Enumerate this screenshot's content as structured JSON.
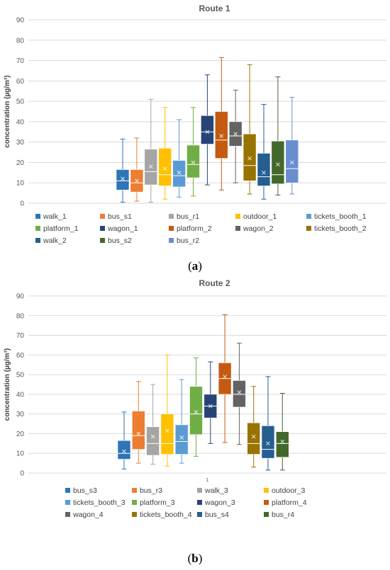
{
  "chart_data": [
    {
      "type": "box",
      "title": "Route 1",
      "ylabel": "concentration (µg/m³)",
      "ylim": [
        0,
        90
      ],
      "yticks": [
        "0",
        "10",
        "20",
        "30",
        "40",
        "50",
        "60",
        "70",
        "80",
        "90"
      ],
      "x_category": "",
      "grid": true,
      "legend_position": "bottom",
      "caption": "(a)",
      "series": [
        {
          "name": "walk_1",
          "color": "#2e75b6",
          "min": 0.5,
          "q1": 6.5,
          "median": 11,
          "mean": 12,
          "q3": 16.5,
          "max": 31.5
        },
        {
          "name": "bus_s1",
          "color": "#ed7d31",
          "min": 1,
          "q1": 5.5,
          "median": 10,
          "mean": 11,
          "q3": 16.5,
          "max": 32
        },
        {
          "name": "bus_r1",
          "color": "#a5a5a5",
          "min": 0.5,
          "q1": 9,
          "median": 15.5,
          "mean": 18,
          "q3": 26.5,
          "max": 51
        },
        {
          "name": "outdoor_1",
          "color": "#ffc000",
          "min": 2,
          "q1": 8.5,
          "median": 14,
          "mean": 17,
          "q3": 27,
          "max": 47
        },
        {
          "name": "tickets_booth_1",
          "color": "#5b9bd5",
          "min": 3,
          "q1": 8,
          "median": 13.5,
          "mean": 15,
          "q3": 21,
          "max": 41
        },
        {
          "name": "platform_1",
          "color": "#70ad47",
          "min": 3.5,
          "q1": 12.5,
          "median": 19,
          "mean": 20,
          "q3": 28.5,
          "max": 47
        },
        {
          "name": "wagon_1",
          "color": "#264478",
          "min": 9,
          "q1": 29,
          "median": 35,
          "mean": 35,
          "q3": 43,
          "max": 63
        },
        {
          "name": "platform_2",
          "color": "#c55a11",
          "min": 6.5,
          "q1": 22,
          "median": 31,
          "mean": 33,
          "q3": 45,
          "max": 71.5
        },
        {
          "name": "wagon_2",
          "color": "#636363",
          "min": 10,
          "q1": 28,
          "median": 33,
          "mean": 34,
          "q3": 40,
          "max": 55.5
        },
        {
          "name": "tickets_booth_2",
          "color": "#997300",
          "min": 4.5,
          "q1": 11,
          "median": 18.5,
          "mean": 22,
          "q3": 34,
          "max": 68
        },
        {
          "name": "walk_2",
          "color": "#255e91",
          "min": 2,
          "q1": 8.5,
          "median": 13,
          "mean": 15,
          "q3": 24.5,
          "max": 48.5
        },
        {
          "name": "bus_s2",
          "color": "#43682b",
          "min": 4,
          "q1": 9.5,
          "median": 14,
          "mean": 19,
          "q3": 30.5,
          "max": 62
        },
        {
          "name": "bus_r2",
          "color": "#698ed0",
          "min": 4.5,
          "q1": 10,
          "median": 17,
          "mean": 20,
          "q3": 31,
          "max": 52
        }
      ]
    },
    {
      "type": "box",
      "title": "Route 2",
      "ylabel": "concentration (µg/m³)",
      "ylim": [
        0,
        90
      ],
      "yticks": [
        "0",
        "10",
        "20",
        "30",
        "40",
        "50",
        "60",
        "70",
        "80",
        "90"
      ],
      "x_category": "1",
      "grid": true,
      "legend_position": "bottom",
      "caption": "(b)",
      "series": [
        {
          "name": "bus_s3",
          "color": "#2e75b6",
          "min": 2,
          "q1": 7,
          "median": 10,
          "mean": 11,
          "q3": 16.5,
          "max": 31
        },
        {
          "name": "bus_r3",
          "color": "#ed7d31",
          "min": 5,
          "q1": 12,
          "median": 19,
          "mean": 20,
          "q3": 31.5,
          "max": 46.5
        },
        {
          "name": "walk_3",
          "color": "#a5a5a5",
          "min": 4.5,
          "q1": 9,
          "median": 15,
          "mean": 18.5,
          "q3": 23.5,
          "max": 45
        },
        {
          "name": "outdoor_3",
          "color": "#ffc000",
          "min": 3.5,
          "q1": 9.5,
          "median": 15,
          "mean": 21.5,
          "q3": 30,
          "max": 60
        },
        {
          "name": "tickets_booth_3",
          "color": "#5b9bd5",
          "min": 5,
          "q1": 9.5,
          "median": 16,
          "mean": 18,
          "q3": 24.5,
          "max": 47.5
        },
        {
          "name": "platform_3",
          "color": "#70ad47",
          "min": 8.5,
          "q1": 19.5,
          "median": 30,
          "mean": 31,
          "q3": 44,
          "max": 58.5
        },
        {
          "name": "wagon_3",
          "color": "#264478",
          "min": 15,
          "q1": 28,
          "median": 34,
          "mean": 34,
          "q3": 40,
          "max": 56.5
        },
        {
          "name": "platform_4",
          "color": "#c55a11",
          "min": 15.5,
          "q1": 40,
          "median": 48,
          "mean": 49,
          "q3": 56,
          "max": 80.5
        },
        {
          "name": "wagon_4",
          "color": "#636363",
          "min": 14.5,
          "q1": 33.5,
          "median": 40,
          "mean": 41,
          "q3": 47,
          "max": 66
        },
        {
          "name": "tickets_booth_4",
          "color": "#997300",
          "min": 3,
          "q1": 9.5,
          "median": 15,
          "mean": 18.5,
          "q3": 25.5,
          "max": 44
        },
        {
          "name": "bus_s4",
          "color": "#255e91",
          "min": 1.5,
          "q1": 7.5,
          "median": 12,
          "mean": 15,
          "q3": 24,
          "max": 49
        },
        {
          "name": "bus_r4",
          "color": "#43682b",
          "min": 1.5,
          "q1": 8,
          "median": 15,
          "mean": 16,
          "q3": 21,
          "max": 40.5
        }
      ]
    }
  ]
}
